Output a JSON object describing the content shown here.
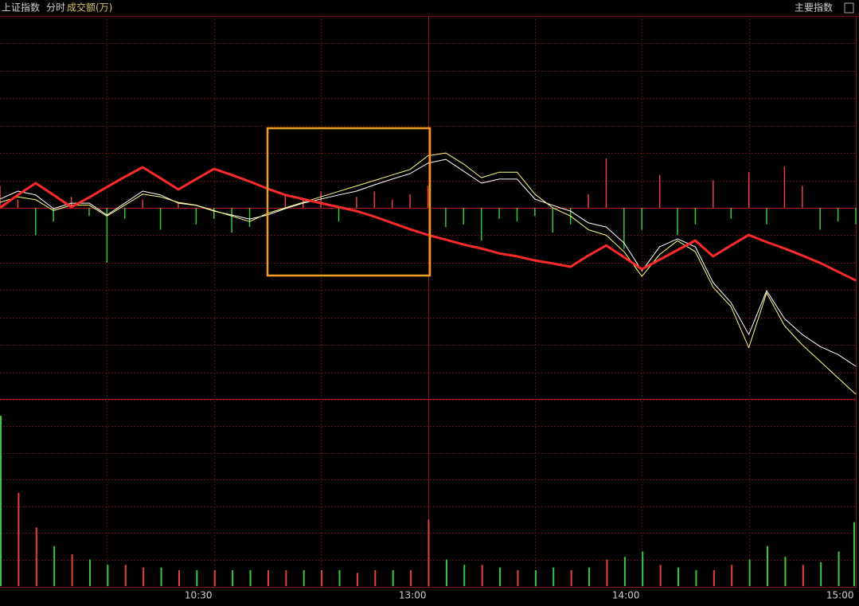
{
  "header": {
    "title": "上证指数",
    "mode": "分时",
    "indicator": "成交额(万)",
    "right": "主要指数"
  },
  "chart_data": [
    {
      "type": "line",
      "x": [
        0,
        5,
        10,
        15,
        20,
        25,
        30,
        35,
        40,
        45,
        50,
        55,
        60,
        65,
        70,
        75,
        80,
        85,
        90,
        95,
        100,
        105,
        110,
        115,
        120,
        125,
        130,
        135,
        140,
        145,
        150,
        155,
        160,
        165,
        170,
        175,
        180,
        185,
        190,
        195,
        200,
        205,
        210,
        215,
        220,
        225,
        230,
        235,
        240
      ],
      "xlim": [
        0,
        240
      ],
      "xticks": [
        {
          "value": 60,
          "label": "10:30"
        },
        {
          "value": 120,
          "label": "13:00"
        },
        {
          "value": 180,
          "label": "14:00"
        },
        {
          "value": 240,
          "label": "15:00"
        }
      ],
      "xgrid": [
        30,
        90,
        150,
        210
      ],
      "ylim": [
        -70,
        70
      ],
      "yticks": [
        -70,
        -60,
        -50,
        -40,
        -30,
        -20,
        -10,
        0,
        10,
        20,
        30,
        40,
        50,
        60,
        70
      ],
      "grid": true,
      "series": [
        {
          "color": "#ffffff",
          "width": 1,
          "values": [
            3.2,
            6.1,
            4.7,
            -0.3,
            1.7,
            1.7,
            -2.6,
            1.7,
            6.1,
            4.7,
            1.7,
            0.9,
            -1.2,
            -2.6,
            -4.1,
            -2.6,
            -0.3,
            1.7,
            3.2,
            4.7,
            6.1,
            8.4,
            10.5,
            12.5,
            16.3,
            17.7,
            13.4,
            9,
            10.5,
            10.5,
            3.2,
            0.9,
            -1.2,
            -5.5,
            -7,
            -12.8,
            -23,
            -14.2,
            -11.3,
            -14.2,
            -27.3,
            -34.6,
            -46.2,
            -30.2,
            -40.4,
            -46.2,
            -50.6,
            -53.5,
            -57.8
          ]
        },
        {
          "color": "#ffff80",
          "width": 1,
          "values": [
            2,
            4,
            3,
            -1,
            1,
            1,
            -3,
            1,
            5,
            4,
            2,
            1,
            -1,
            -3,
            -5,
            -2,
            0,
            2,
            4,
            6,
            8,
            10,
            12,
            14,
            19,
            20,
            16,
            11,
            13,
            13,
            5,
            0,
            -3,
            -8,
            -10,
            -16,
            -25,
            -17,
            -12,
            -16,
            -29,
            -36,
            -51,
            -31,
            -43,
            -50,
            -56,
            -62,
            -68
          ]
        },
        {
          "color": "#ff2a2a",
          "width": 3,
          "values": [
            0,
            4.7,
            9,
            4.7,
            0.3,
            3.8,
            7.6,
            11.3,
            14.8,
            10.8,
            6.7,
            10.5,
            14.2,
            12,
            9.6,
            7,
            4.7,
            3.2,
            1.7,
            0.3,
            -1.2,
            -3.2,
            -5.5,
            -7.8,
            -9.9,
            -11.6,
            -13.4,
            -14.8,
            -16.6,
            -17.7,
            -19.2,
            -20.3,
            -21.5,
            -17.4,
            -13.7,
            -18,
            -22.4,
            -18.9,
            -15.4,
            -11.9,
            -17.7,
            -13.7,
            -9.9,
            -12.5,
            -14.8,
            -17.4,
            -20.1,
            -23.3,
            -26.5
          ]
        }
      ],
      "bars": {
        "color_up": "#e84040",
        "color_down": "#3cc83c",
        "values": [
          8,
          3,
          -10,
          -5,
          4,
          -3,
          -20,
          -4,
          3,
          -8,
          2,
          -6,
          -4,
          -9,
          -7,
          4,
          5,
          3,
          6,
          -5,
          4,
          6,
          3,
          5,
          8,
          -7,
          -6,
          -12,
          -4,
          -5,
          -3,
          -9,
          -6,
          5,
          18,
          -15,
          -8,
          12,
          -10,
          -6,
          10,
          -4,
          13,
          -6,
          15,
          8,
          -8,
          -5,
          -6
        ]
      }
    },
    {
      "type": "bar",
      "x": [
        0,
        5,
        10,
        15,
        20,
        25,
        30,
        35,
        40,
        45,
        50,
        55,
        60,
        65,
        70,
        75,
        80,
        85,
        90,
        95,
        100,
        105,
        110,
        115,
        120,
        125,
        130,
        135,
        140,
        145,
        150,
        155,
        160,
        165,
        170,
        175,
        180,
        185,
        190,
        195,
        200,
        205,
        210,
        215,
        220,
        225,
        230,
        235,
        240
      ],
      "xlim": [
        0,
        240
      ],
      "ylim": [
        0,
        70
      ],
      "yticks": [
        10,
        20,
        30,
        40,
        50,
        60
      ],
      "grid": true,
      "values": [
        64,
        35,
        22,
        15,
        12,
        10,
        8,
        8,
        7,
        7,
        6,
        6,
        6,
        6,
        6,
        6,
        6,
        6,
        6,
        6,
        5,
        6,
        6,
        6,
        25,
        10,
        8,
        8,
        7,
        6,
        6,
        7,
        6,
        7,
        10,
        11,
        13,
        8,
        7,
        6,
        6,
        8,
        10,
        15,
        11,
        8,
        9,
        13,
        24
      ],
      "colors": [
        "#3cc83c",
        "#e84040",
        "#e84040",
        "#3cc83c",
        "#e84040",
        "#3cc83c",
        "#3cc83c",
        "#e84040",
        "#e84040",
        "#3cc83c",
        "#e84040",
        "#3cc83c",
        "#e84040",
        "#3cc83c",
        "#3cc83c",
        "#e84040",
        "#e84040",
        "#3cc83c",
        "#e84040",
        "#3cc83c",
        "#e84040",
        "#e84040",
        "#3cc83c",
        "#e84040",
        "#e84040",
        "#3cc83c",
        "#3cc83c",
        "#e84040",
        "#3cc83c",
        "#e84040",
        "#3cc83c",
        "#3cc83c",
        "#e84040",
        "#3cc83c",
        "#e84040",
        "#3cc83c",
        "#3cc83c",
        "#e84040",
        "#3cc83c",
        "#3cc83c",
        "#e84040",
        "#e84040",
        "#3cc83c",
        "#3cc83c",
        "#3cc83c",
        "#e84040",
        "#3cc83c",
        "#3cc83c",
        "#3cc83c"
      ]
    }
  ]
}
